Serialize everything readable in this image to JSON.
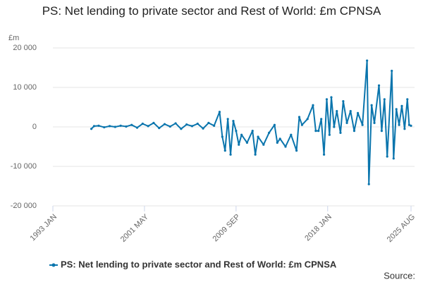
{
  "chart_data": {
    "type": "line",
    "title": "PS: Net lending to private sector and Rest of World: £m CPNSA",
    "y_label": "£m",
    "source_label": "Source:",
    "x": [
      "1996 JUL",
      "1996 OCT",
      "1997 MAR",
      "1997 SEP",
      "1998 MAR",
      "1998 SEP",
      "1999 MAR",
      "1999 SEP",
      "2000 MAR",
      "2000 SEP",
      "2001 MAR",
      "2001 SEP",
      "2002 MAR",
      "2002 SEP",
      "2003 MAR",
      "2003 SEP",
      "2004 MAR",
      "2004 SEP",
      "2005 MAR",
      "2005 SEP",
      "2006 MAR",
      "2006 SEP",
      "2007 MAR",
      "2007 SEP",
      "2008 MAR",
      "2008 JUN",
      "2008 SEP",
      "2008 DEC",
      "2009 MAR",
      "2009 JUN",
      "2009 SEP",
      "2009 DEC",
      "2010 MAR",
      "2010 SEP",
      "2011 MAR",
      "2011 JUN",
      "2011 SEP",
      "2012 MAR",
      "2012 SEP",
      "2013 MAR",
      "2013 JUN",
      "2013 SEP",
      "2014 MAR",
      "2014 SEP",
      "2015 MAR",
      "2015 JUN",
      "2015 SEP",
      "2016 MAR",
      "2016 SEP",
      "2016 DEC",
      "2017 MAR",
      "2017 JUN",
      "2017 SEP",
      "2017 DEC",
      "2018 MAR",
      "2018 MAY",
      "2018 AUG",
      "2018 NOV",
      "2019 MAR",
      "2019 JUN",
      "2019 OCT",
      "2020 FEB",
      "2020 JUN",
      "2020 OCT",
      "2021 MAR",
      "2021 AUG",
      "2021 OCT",
      "2022 JAN",
      "2022 APR",
      "2022 SEP",
      "2022 DEC",
      "2023 MAR",
      "2023 JUN",
      "2023 NOV",
      "2024 JAN",
      "2024 APR",
      "2024 JUL",
      "2024 OCT",
      "2025 JAN",
      "2025 APR",
      "2025 JUN",
      "2025 AUG"
    ],
    "series": [
      {
        "name": "PS: Net lending to private sector and Rest of World: £m CPNSA",
        "color": "#0a75ad",
        "values": [
          -500,
          200,
          300,
          -100,
          200,
          0,
          300,
          100,
          500,
          -200,
          800,
          200,
          1000,
          -300,
          700,
          100,
          900,
          -500,
          600,
          200,
          800,
          -400,
          1000,
          300,
          3800,
          -2500,
          -6000,
          2000,
          -7000,
          1500,
          -1000,
          -4500,
          -2000,
          -4000,
          -1000,
          -7000,
          -2500,
          -4500,
          -1500,
          500,
          -4000,
          -3000,
          -5000,
          -2000,
          -6000,
          2500,
          500,
          2000,
          5500,
          -1000,
          -1000,
          2000,
          -7000,
          7000,
          -2000,
          7500,
          0,
          4000,
          -1500,
          6500,
          1000,
          4000,
          -1000,
          3500,
          500,
          16800,
          -14500,
          5500,
          1000,
          10500,
          -1000,
          7000,
          -7500,
          14200,
          -8000,
          4500,
          500,
          5300,
          -500,
          7000,
          500,
          300
        ]
      }
    ],
    "xlim": [
      "1993 JAN",
      "2025 AUG"
    ],
    "xticks": [
      "1993 JAN",
      "2001 MAY",
      "2009 SEP",
      "2018 JAN",
      "2025 AUG"
    ],
    "ylim": [
      -20000,
      20000
    ],
    "yticks": [
      {
        "value": -20000,
        "label": "-20 000"
      },
      {
        "value": -10000,
        "label": "-10 000"
      },
      0,
      {
        "value": 10000,
        "label": "10 000"
      },
      {
        "value": 20000,
        "label": "20 000"
      }
    ],
    "grid": true
  }
}
